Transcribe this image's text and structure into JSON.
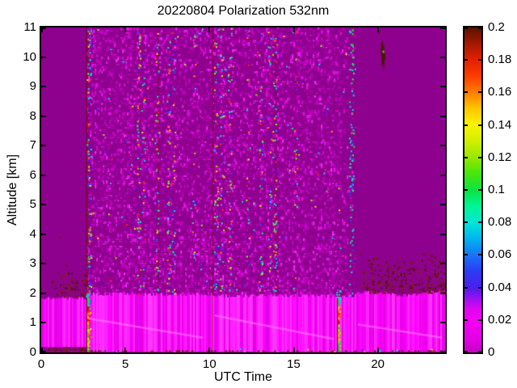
{
  "figure": {
    "background": "#ffffff"
  },
  "chart_data": {
    "type": "heatmap",
    "title": "20220804 Polarization 532nm",
    "xlabel": "UTC Time",
    "ylabel": "Altitude [km]",
    "xlim": [
      0,
      24
    ],
    "ylim": [
      0,
      11
    ],
    "clim": [
      0,
      0.2
    ],
    "seed": 20220804,
    "x_ticks": {
      "values": [
        0,
        5,
        10,
        15,
        20
      ],
      "labels": [
        "0",
        "5",
        "10",
        "15",
        "20"
      ]
    },
    "y_ticks": {
      "values": [
        0,
        1,
        2,
        3,
        4,
        5,
        6,
        7,
        8,
        9,
        10,
        11
      ],
      "labels": [
        "0",
        "1",
        "2",
        "3",
        "4",
        "5",
        "6",
        "7",
        "8",
        "9",
        "10",
        "11"
      ]
    },
    "colorbar": {
      "tick_values": [
        0,
        0.02,
        0.04,
        0.06,
        0.08,
        0.1,
        0.12,
        0.14,
        0.16,
        0.18,
        0.2
      ],
      "tick_labels": [
        "0",
        "0.02",
        "0.04",
        "0.06",
        "0.08",
        "0.1",
        "0.12",
        "0.14",
        "0.16",
        "0.18",
        "0.2"
      ],
      "stops": [
        [
          0,
          "#c400c4"
        ],
        [
          0.04,
          "#e300e3"
        ],
        [
          0.1,
          "#f200f2"
        ],
        [
          0.13,
          "#e404f0"
        ],
        [
          0.16,
          "#a80ef0"
        ],
        [
          0.2,
          "#4a1eee"
        ],
        [
          0.25,
          "#2b3cf4"
        ],
        [
          0.3,
          "#1a73f8"
        ],
        [
          0.35,
          "#00b4f0"
        ],
        [
          0.4,
          "#00e6d4"
        ],
        [
          0.45,
          "#00f596"
        ],
        [
          0.5,
          "#0ce342"
        ],
        [
          0.55,
          "#46e60c"
        ],
        [
          0.6,
          "#96e800"
        ],
        [
          0.65,
          "#d2ef00"
        ],
        [
          0.7,
          "#f8f400"
        ],
        [
          0.75,
          "#ffc600"
        ],
        [
          0.8,
          "#ff7d00"
        ],
        [
          0.85,
          "#ff3c00"
        ],
        [
          0.9,
          "#e32000"
        ],
        [
          0.95,
          "#a41800"
        ],
        [
          1,
          "#571300"
        ]
      ]
    },
    "colors": {
      "background": "#8e008e",
      "noise_shades": [
        "#a800a8",
        "#bf00bf",
        "#d400d4",
        "#e800e8",
        "#f715f7",
        "#ff2eff"
      ],
      "noise_palette": [
        "#00d2ff",
        "#1e50ff",
        "#2b16f0",
        "#00ff9b",
        "#8cff00",
        "#ffe100",
        "#ff8c00",
        "#ff2d00",
        "#ff2eff",
        "#00e8d2"
      ],
      "cyan_palette": [
        "#00d2ff",
        "#00e8d2",
        "#1e50ff",
        "#00ff9b",
        "#2be800"
      ],
      "brown_shades": [
        "#5a1a02",
        "#6b2405",
        "#4e1203",
        "#7a2a05"
      ],
      "dark_red": "#6e1400",
      "cal_low": [
        "#2be800",
        "#8cff00",
        "#0fe05a",
        "#ffe100"
      ],
      "cal_mid": [
        "#ffe100",
        "#b4f000",
        "#ff9b00",
        "#2be800"
      ],
      "cal_hot": [
        "#ff2d00",
        "#ff8c00",
        "#b41e00",
        "#ffe100",
        "#e80000"
      ],
      "cal_top": [
        "#2be800",
        "#00e8d2",
        "#0fe05a",
        "#00d2ff"
      ]
    },
    "noise_field": {
      "u0": 2.7,
      "u1": 18.65,
      "a0": 0,
      "a1": 11,
      "density": 0.3,
      "low_density": 0.36,
      "low_alt": 4,
      "fade_start": 17.4,
      "sparse_color_count": 130
    },
    "band": {
      "bottom": 0.02,
      "left_end": 2.66,
      "left_top": 1.84,
      "left_bottom": 0.18,
      "mid_split": 10.15,
      "mid_top": 1.97,
      "mid2_top": 1.92,
      "right_start": 18.6,
      "right_top": 2.0,
      "lightness_min": 44,
      "lightness_max": 62,
      "wisp_color": "#ff96ff",
      "wisps": [
        [
          2.8,
          1.15,
          9.6,
          0.5
        ],
        [
          10.3,
          1.25,
          17.4,
          0.45
        ],
        [
          18.8,
          0.95,
          23.8,
          0.5
        ]
      ],
      "bottom_color_dots": 26
    },
    "noise_streaks": [
      {
        "u": 2.82,
        "a0": 0,
        "a1": 11,
        "density": 0.55,
        "spread": 0.25
      },
      {
        "u": 5.78,
        "a0": 2,
        "a1": 11,
        "density": 0.32,
        "spread": 0.2
      },
      {
        "u": 6.05,
        "a0": 2,
        "a1": 11,
        "density": 0.18,
        "spread": 0.18
      },
      {
        "u": 6.88,
        "a0": 2,
        "a1": 11,
        "density": 0.3,
        "spread": 0.2
      },
      {
        "u": 7.55,
        "a0": 2,
        "a1": 11,
        "density": 0.34,
        "spread": 0.2
      },
      {
        "u": 7.85,
        "a0": 2,
        "a1": 11,
        "density": 0.26,
        "spread": 0.18
      },
      {
        "u": 9.05,
        "a0": 2.5,
        "a1": 11,
        "density": 0.12,
        "spread": 0.18
      },
      {
        "u": 10.38,
        "a0": 2,
        "a1": 11,
        "density": 0.38,
        "spread": 0.22
      },
      {
        "u": 10.72,
        "a0": 2,
        "a1": 11,
        "density": 0.32,
        "spread": 0.2
      },
      {
        "u": 11.18,
        "a0": 2,
        "a1": 11,
        "density": 0.34,
        "spread": 0.22
      },
      {
        "u": 12.25,
        "a0": 2.5,
        "a1": 11,
        "density": 0.14,
        "spread": 0.18
      },
      {
        "u": 13.02,
        "a0": 2,
        "a1": 11,
        "density": 0.28,
        "spread": 0.2
      },
      {
        "u": 13.55,
        "a0": 2,
        "a1": 11,
        "density": 0.18,
        "spread": 0.18
      },
      {
        "u": 13.85,
        "a0": 2,
        "a1": 11,
        "density": 0.42,
        "spread": 0.24
      },
      {
        "u": 15.1,
        "a0": 2.5,
        "a1": 11,
        "density": 0.12,
        "spread": 0.18
      },
      {
        "u": 18.42,
        "a0": 1.9,
        "a1": 11,
        "density": 0.5,
        "spread": 0.26,
        "cyan": true
      }
    ],
    "dark_lines": [
      {
        "u": 2.68,
        "a0": 0,
        "a1": 11,
        "alpha": 0.85
      },
      {
        "u": 6.92,
        "a0": 2,
        "a1": 11,
        "alpha": 0.35
      },
      {
        "u": 10.15,
        "a0": 0,
        "a1": 11,
        "alpha": 0.4
      },
      {
        "u": 13.88,
        "a0": 2,
        "a1": 11,
        "alpha": 0.4
      },
      {
        "u": 17.58,
        "a0": 0.05,
        "a1": 2.0,
        "alpha": 0.85
      }
    ],
    "calibration_streaks": [
      {
        "u": 2.74
      },
      {
        "u": 17.64
      }
    ],
    "speckle_regions": [
      {
        "u0": 0.25,
        "u1": 2.6,
        "a0": 1.88,
        "a1": 2.8,
        "density": 0.32,
        "fade_up": true,
        "fade_in": 1.2
      },
      {
        "u0": 0.02,
        "u1": 2.62,
        "a0": 0.0,
        "a1": 0.18,
        "density": 0.35,
        "fade_up": false
      },
      {
        "u0": 18.75,
        "u1": 23.95,
        "a0": 2.02,
        "a1": 3.35,
        "density": 0.3,
        "fade_up": true,
        "fade_in": 0.9
      },
      {
        "u0": 2.7,
        "u1": 23.95,
        "a0": 0.0,
        "a1": 0.07,
        "density": 0.22,
        "fade_up": false
      }
    ],
    "extra_dots": [
      [
        1.05,
        3.92
      ],
      [
        1.5,
        2.95
      ]
    ],
    "cloud_blob": {
      "color": "#4e1505",
      "points": [
        [
          20.2,
          10.5
        ],
        [
          20.24,
          10.62
        ],
        [
          20.27,
          10.45
        ],
        [
          20.3,
          10.58
        ],
        [
          20.33,
          10.35
        ],
        [
          20.37,
          10.42
        ],
        [
          20.4,
          10.1
        ],
        [
          20.44,
          10.15
        ],
        [
          20.46,
          9.95
        ],
        [
          20.4,
          9.85
        ],
        [
          20.42,
          9.6
        ],
        [
          20.35,
          9.8
        ],
        [
          20.33,
          9.55
        ],
        [
          20.28,
          9.75
        ],
        [
          20.24,
          9.65
        ],
        [
          20.22,
          10.0
        ],
        [
          20.18,
          10.1
        ]
      ],
      "dot": [
        20.28,
        10.22
      ],
      "dot_color": "#2be800",
      "speck": [
        20.0,
        10.92
      ]
    }
  }
}
